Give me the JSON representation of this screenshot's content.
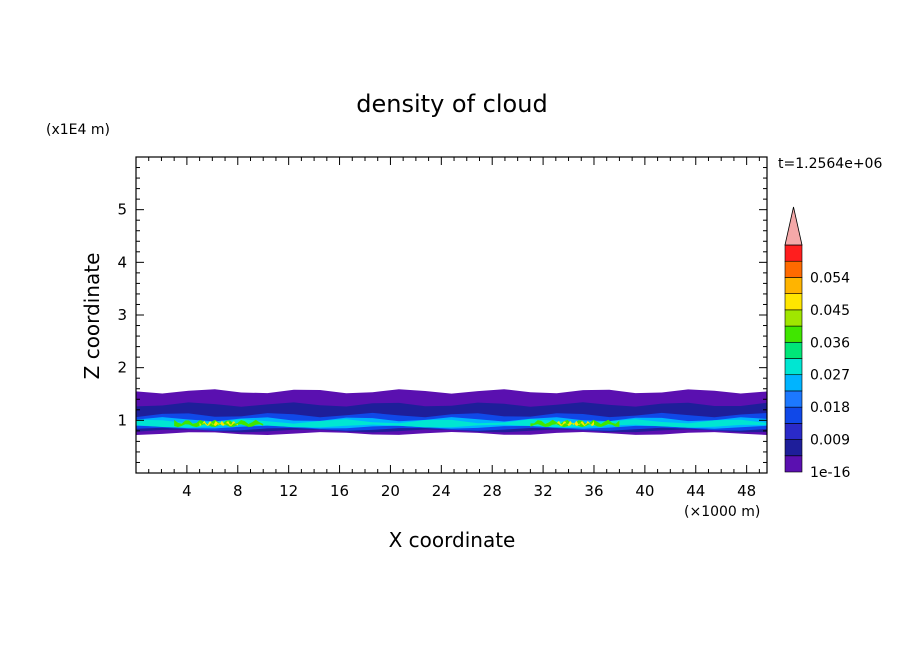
{
  "chart_data": {
    "type": "heatmap",
    "title": "density of cloud",
    "xlabel": "X coordinate",
    "ylabel": "Z coordinate",
    "x_unit": "(×1000 m)",
    "y_unit": "(x1E4 m)",
    "time_label": "t=1.2564e+06",
    "xlim": [
      0,
      49.6
    ],
    "ylim": [
      0,
      6
    ],
    "x_ticks": [
      4,
      8,
      12,
      16,
      20,
      24,
      28,
      32,
      36,
      40,
      44,
      48
    ],
    "y_ticks": [
      1,
      2,
      3,
      4,
      5
    ],
    "x_tick_labels": [
      "4",
      "8",
      "12",
      "16",
      "20",
      "24",
      "28",
      "32",
      "36",
      "40",
      "44",
      "48"
    ],
    "y_tick_labels": [
      "1",
      "2",
      "3",
      "4",
      "5"
    ],
    "colorbar": {
      "levels": [
        1e-16,
        0.0045,
        0.009,
        0.0135,
        0.018,
        0.0225,
        0.027,
        0.0315,
        0.036,
        0.0405,
        0.045,
        0.0495,
        0.054,
        0.0585
      ],
      "tick_labels": [
        "1e-16",
        "0.009",
        "0.018",
        "0.027",
        "0.036",
        "0.045",
        "0.054"
      ],
      "colors": [
        "#5a10b0",
        "#1e1e9a",
        "#2a2ac8",
        "#1048e8",
        "#1c78ff",
        "#00b4ff",
        "#00e6d2",
        "#00e678",
        "#40e600",
        "#a0e600",
        "#ffe600",
        "#ffb400",
        "#ff6a00",
        "#ff1e1e"
      ],
      "extend_color": "#f4a8a8"
    },
    "bands": [
      {
        "level": 0,
        "x": [
          0,
          49.6
        ],
        "z": [
          0.75,
          1.55
        ]
      },
      {
        "level": 1,
        "x": [
          0,
          49.6
        ],
        "z": [
          0.8,
          1.3
        ]
      },
      {
        "level": 3,
        "x": [
          0,
          49.6
        ],
        "z": [
          0.83,
          1.1
        ]
      },
      {
        "level": 5,
        "x": [
          0,
          49.6
        ],
        "z": [
          0.87,
          1.02
        ]
      },
      {
        "level": 6,
        "x": [
          0,
          49.6
        ],
        "z": [
          0.89,
          0.98
        ]
      },
      {
        "level": 8,
        "x": [
          3,
          10
        ],
        "z": [
          0.9,
          0.97
        ]
      },
      {
        "level": 10,
        "x": [
          5,
          8
        ],
        "z": [
          0.92,
          0.95
        ]
      },
      {
        "level": 8,
        "x": [
          31,
          38
        ],
        "z": [
          0.9,
          0.97
        ]
      },
      {
        "level": 10,
        "x": [
          33,
          36
        ],
        "z": [
          0.92,
          0.95
        ]
      }
    ],
    "grid": false
  }
}
